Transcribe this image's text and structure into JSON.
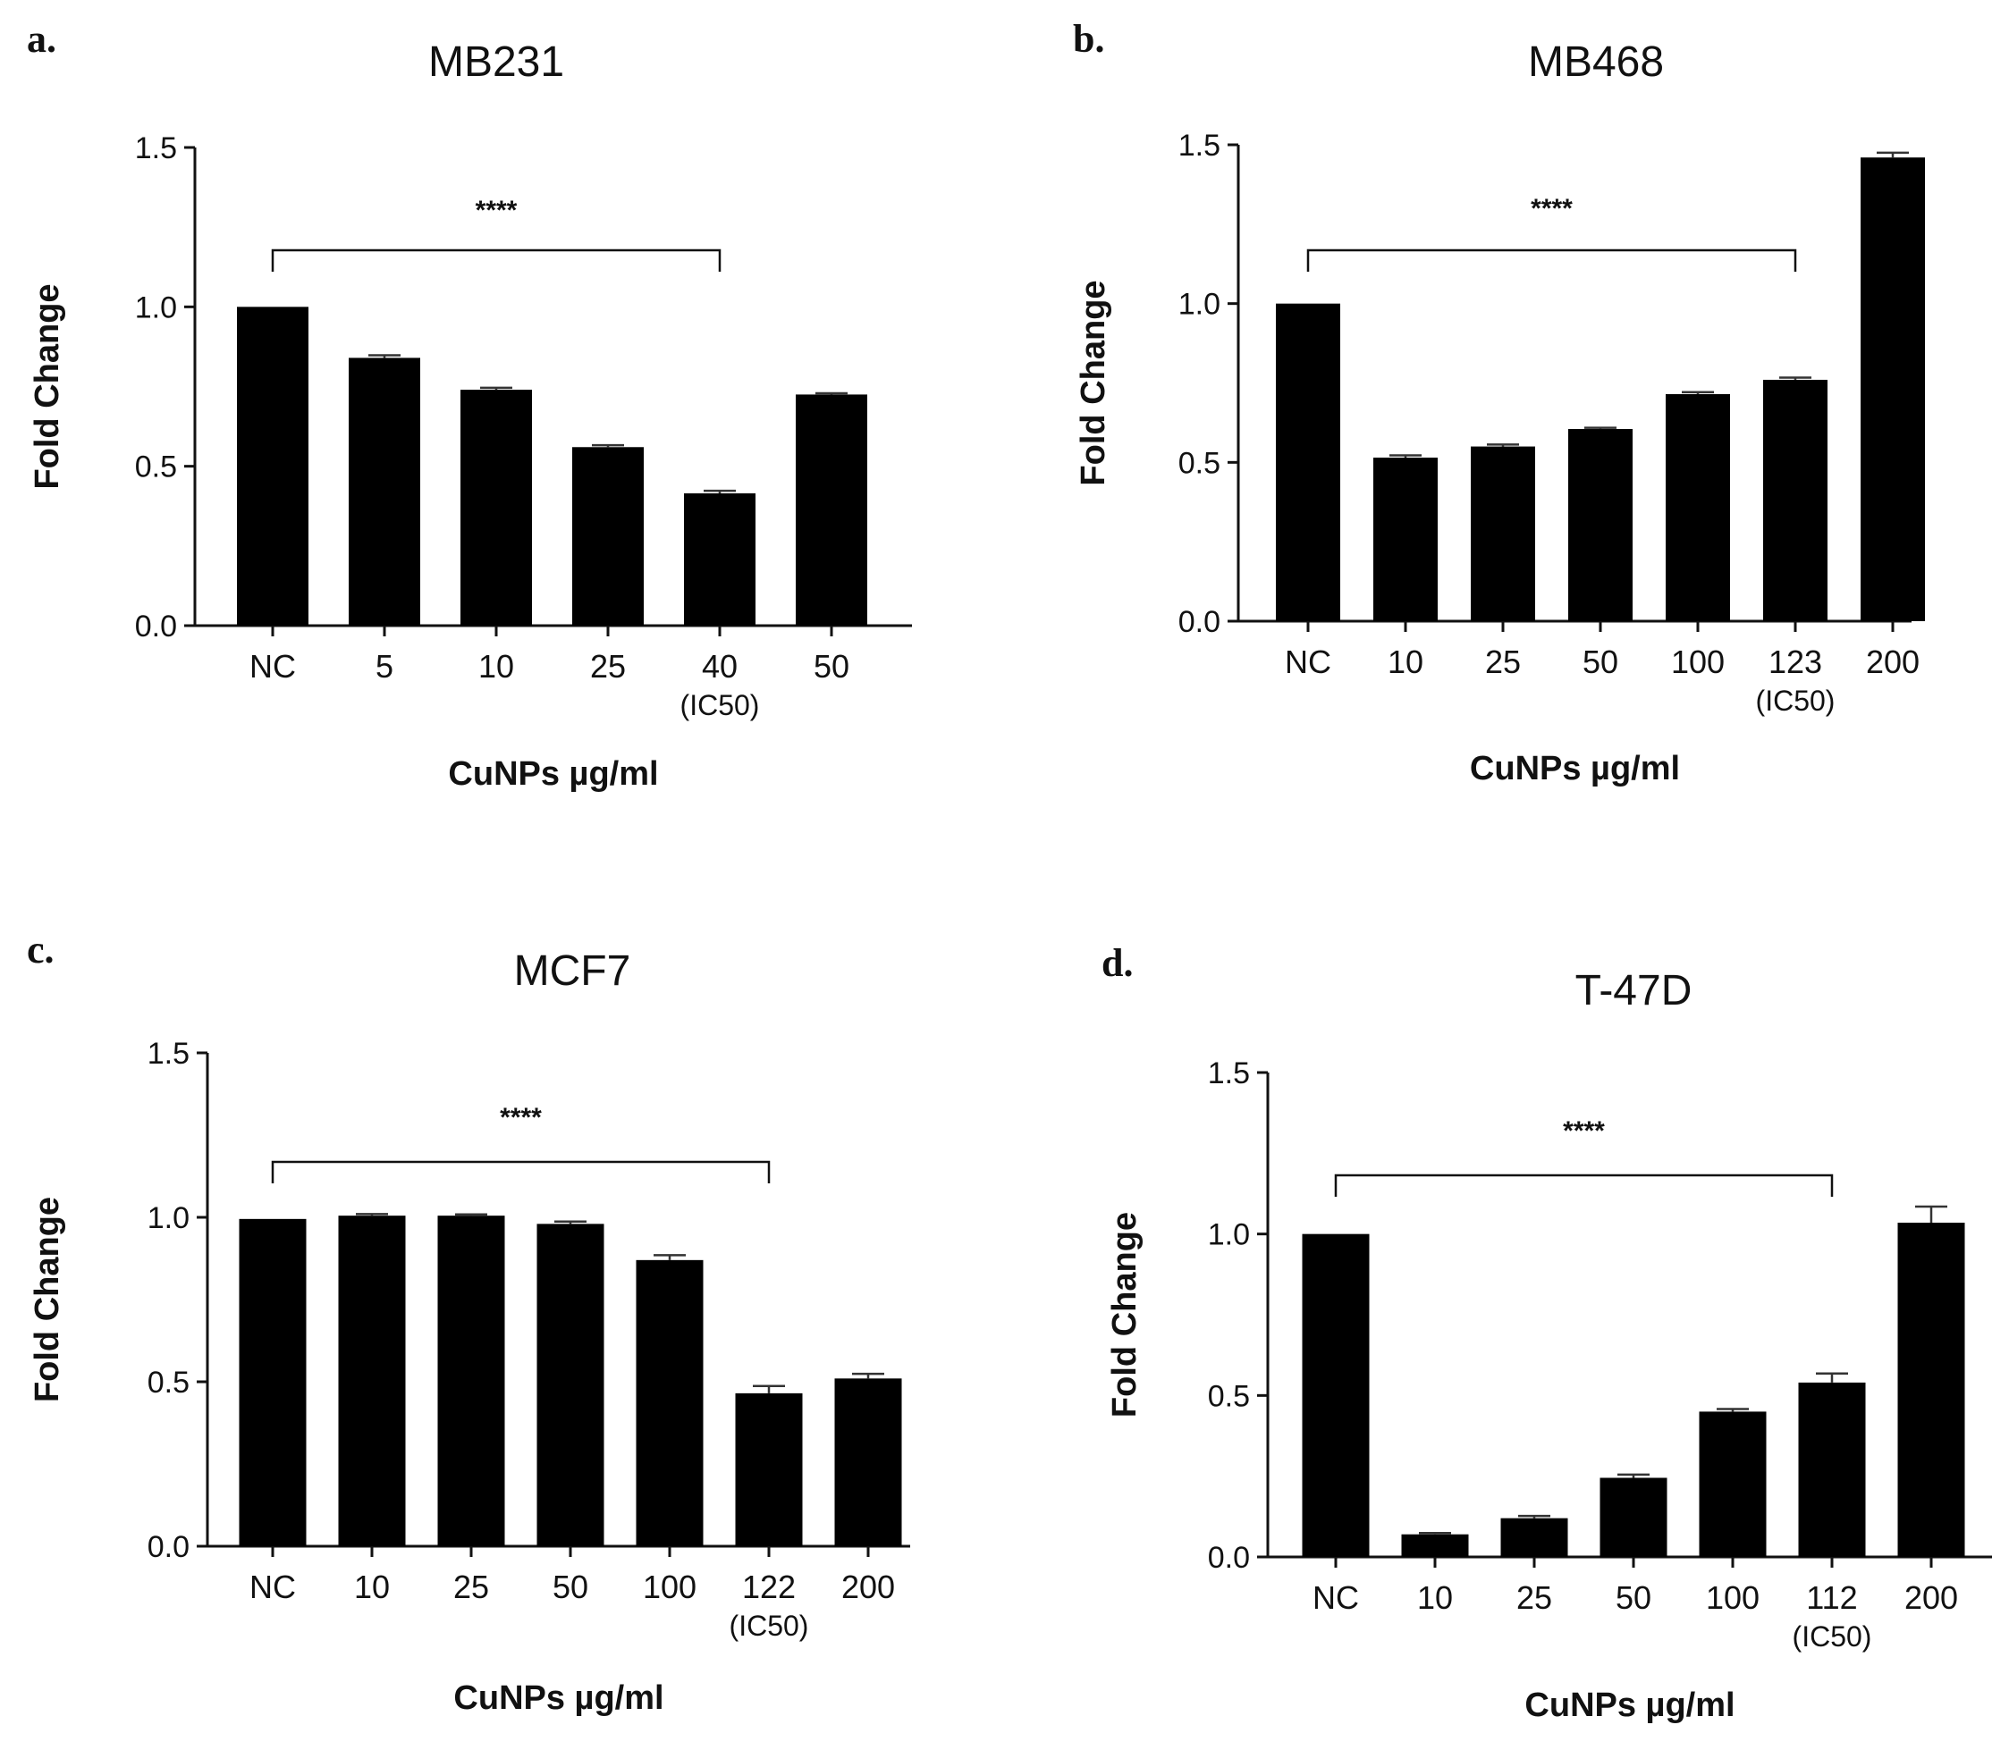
{
  "chart_data": [
    {
      "panel": "a.",
      "type": "bar",
      "title": "MB231",
      "xlabel": "CuNPs µg/ml",
      "ylabel": "Fold Change",
      "ylim": [
        0,
        1.5
      ],
      "yticks": [
        "0.0",
        "0.5",
        "1.0",
        "1.5"
      ],
      "categories": [
        "NC",
        "5",
        "10",
        "25",
        "40",
        "50"
      ],
      "category_notes": [
        "",
        "",
        "",
        "",
        "(IC50)",
        ""
      ],
      "values": [
        1.0,
        0.84,
        0.74,
        0.56,
        0.415,
        0.725
      ],
      "errors": [
        0.0,
        0.008,
        0.006,
        0.006,
        0.008,
        0.004
      ],
      "significance": {
        "label": "****",
        "from": "NC",
        "to": "40"
      }
    },
    {
      "panel": "b.",
      "type": "bar",
      "title": "MB468",
      "xlabel": "CuNPs µg/ml",
      "ylabel": "Fold Change",
      "ylim": [
        0,
        1.5
      ],
      "yticks": [
        "0.0",
        "0.5",
        "1.0",
        "1.5"
      ],
      "categories": [
        "NC",
        "10",
        "25",
        "50",
        "100",
        "123",
        "200"
      ],
      "category_notes": [
        "",
        "",
        "",
        "",
        "",
        "(IC50)",
        ""
      ],
      "values": [
        1.0,
        0.515,
        0.55,
        0.605,
        0.715,
        0.76,
        1.46
      ],
      "errors": [
        0.0,
        0.007,
        0.006,
        0.004,
        0.006,
        0.007,
        0.015
      ],
      "significance": {
        "label": "****",
        "from": "NC",
        "to": "123"
      }
    },
    {
      "panel": "c.",
      "type": "bar",
      "title": "MCF7",
      "xlabel": "CuNPs µg/ml",
      "ylabel": "Fold Change",
      "ylim": [
        0,
        1.5
      ],
      "yticks": [
        "0.0",
        "0.5",
        "1.0",
        "1.5"
      ],
      "categories": [
        "NC",
        "10",
        "25",
        "50",
        "100",
        "122",
        "200"
      ],
      "category_notes": [
        "",
        "",
        "",
        "",
        "",
        "(IC50)",
        ""
      ],
      "values": [
        0.995,
        1.005,
        1.005,
        0.98,
        0.87,
        0.465,
        0.51
      ],
      "errors": [
        0.0,
        0.005,
        0.004,
        0.007,
        0.015,
        0.022,
        0.014
      ],
      "significance": {
        "label": "****",
        "from": "NC",
        "to": "122"
      }
    },
    {
      "panel": "d.",
      "type": "bar",
      "title": "T-47D",
      "xlabel": "CuNPs µg/ml",
      "ylabel": "Fold Change",
      "ylim": [
        0,
        1.5
      ],
      "yticks": [
        "0.0",
        "0.5",
        "1.0",
        "1.5"
      ],
      "categories": [
        "NC",
        "10",
        "25",
        "50",
        "100",
        "112",
        "200"
      ],
      "category_notes": [
        "",
        "",
        "",
        "",
        "",
        "(IC50)",
        ""
      ],
      "values": [
        1.0,
        0.07,
        0.12,
        0.245,
        0.45,
        0.54,
        1.035
      ],
      "errors": [
        0.0,
        0.004,
        0.007,
        0.01,
        0.008,
        0.028,
        0.05
      ],
      "significance": {
        "label": "****",
        "from": "NC",
        "to": "112"
      }
    }
  ]
}
